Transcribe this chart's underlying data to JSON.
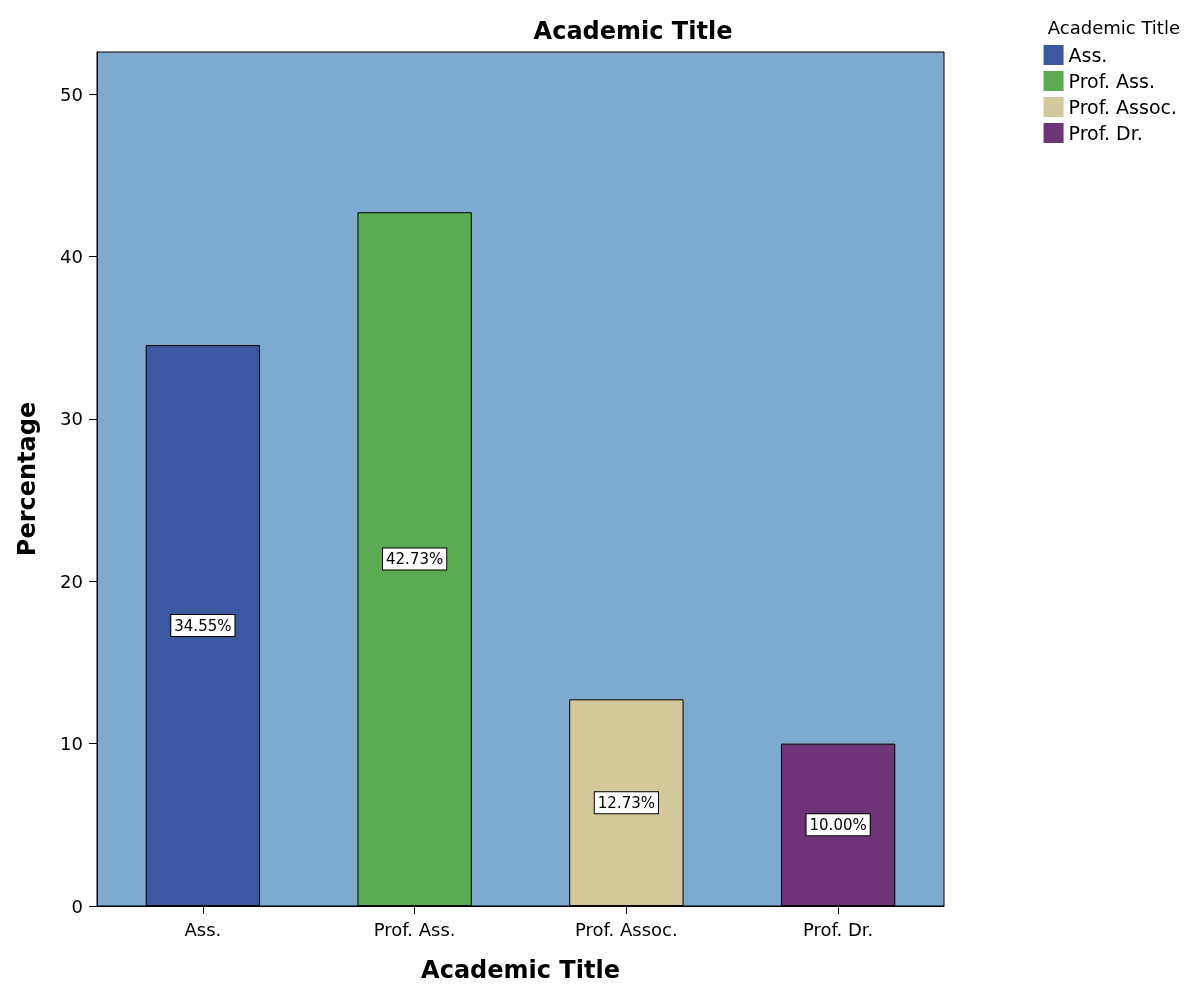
{
  "chart_data": {
    "type": "bar",
    "title": "Academic Title",
    "xlabel": "Academic Title",
    "ylabel": "Percentage",
    "legend_title": "Academic Title",
    "categories": [
      "Ass.",
      "Prof. Ass.",
      "Prof. Assoc.",
      "Prof. Dr."
    ],
    "series": [
      {
        "name": "Ass.",
        "color": "#3c58a0",
        "values": [
          34.55,
          null,
          null,
          null
        ],
        "value_labels": [
          "34.55%",
          null,
          null,
          null
        ]
      },
      {
        "name": "Prof. Ass.",
        "color": "#5aab52",
        "values": [
          null,
          42.73,
          null,
          null
        ],
        "value_labels": [
          null,
          "42.73%",
          null,
          null
        ]
      },
      {
        "name": "Prof. Assoc.",
        "color": "#d3c99b",
        "values": [
          null,
          null,
          12.73,
          null
        ],
        "value_labels": [
          null,
          null,
          "12.73%",
          null
        ]
      },
      {
        "name": "Prof. Dr.",
        "color": "#6d3478",
        "values": [
          null,
          null,
          null,
          10.0
        ],
        "value_labels": [
          null,
          null,
          null,
          "10.00%"
        ]
      }
    ],
    "ylim": [
      0,
      52.6
    ],
    "yticks": [
      0,
      10,
      20,
      30,
      40,
      50
    ],
    "grid": false,
    "legend": "top right"
  }
}
